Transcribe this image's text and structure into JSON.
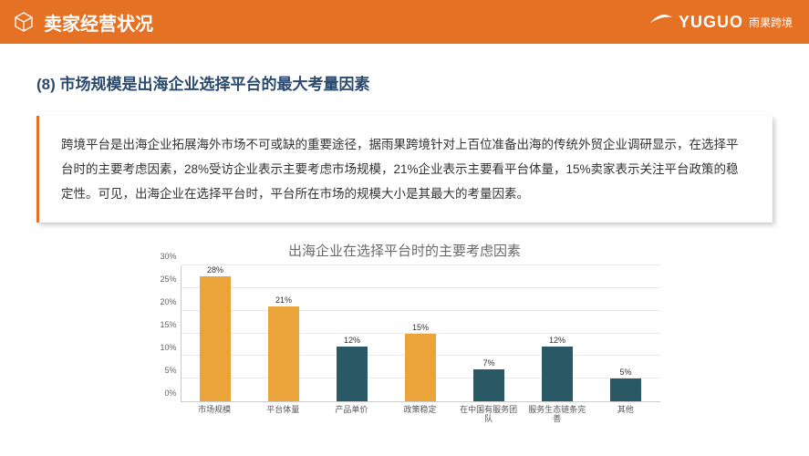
{
  "header": {
    "bg_color": "#e57125",
    "title": "卖家经营状况",
    "logo_text": "YUGUO",
    "logo_cn": "雨果跨境"
  },
  "subtitle": {
    "text": "(8) 市场规模是出海企业选择平台的最大考量因素",
    "color": "#2a4a6f"
  },
  "description": "跨境平台是出海企业拓展海外市场不可或缺的重要途径，据雨果跨境针对上百位准备出海的传统外贸企业调研显示，在选择平台时的主要考虑因素，28%受访企业表示主要考虑市场规模，21%企业表示主要看平台体量，15%卖家表示关注平台政策的稳定性。可见，出海企业在选择平台时，平台所在市场的规模大小是其最大的考量因素。",
  "chart": {
    "title": "出海企业在选择平台时的主要考虑因素",
    "type": "bar",
    "y_max": 30,
    "y_ticks": [
      0,
      5,
      10,
      15,
      20,
      25,
      30
    ],
    "colors": {
      "orange": "#eaa43a",
      "teal": "#2a5966"
    },
    "bars": [
      {
        "label": "市场规模",
        "value": 28,
        "color": "orange"
      },
      {
        "label": "平台体量",
        "value": 21,
        "color": "orange"
      },
      {
        "label": "产品单价",
        "value": 12,
        "color": "teal"
      },
      {
        "label": "政策稳定",
        "value": 15,
        "color": "orange"
      },
      {
        "label": "在中国有服务团队",
        "value": 7,
        "color": "teal"
      },
      {
        "label": "服务生态链条完善",
        "value": 12,
        "color": "teal"
      },
      {
        "label": "其他",
        "value": 5,
        "color": "teal"
      }
    ]
  }
}
